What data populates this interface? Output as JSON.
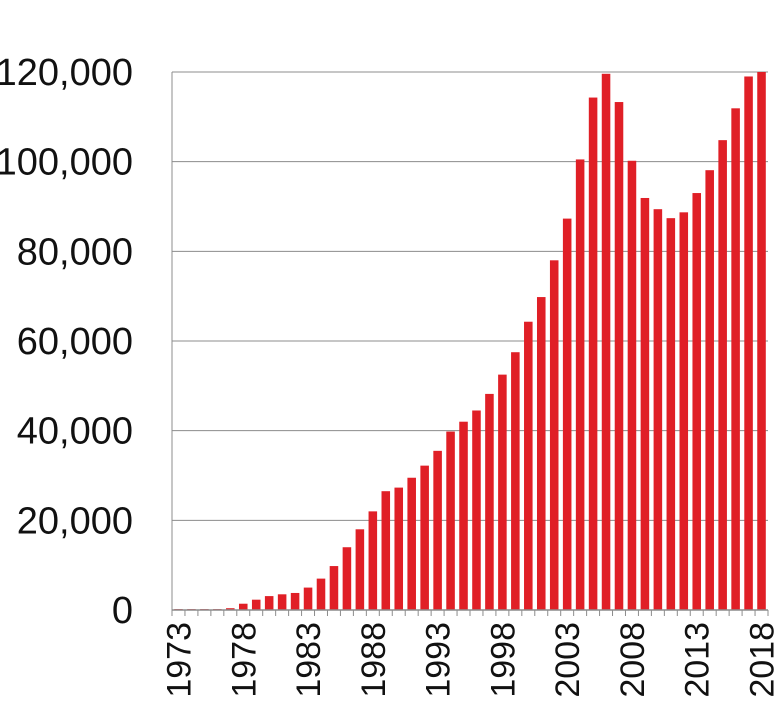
{
  "chart_data": {
    "type": "bar",
    "title": "",
    "xlabel": "",
    "ylabel": "",
    "ylim": [
      0,
      120000
    ],
    "grid": true,
    "colors": {
      "bar": "#e01f26",
      "grid": "#8c8c8c",
      "axis": "#8c8c8c"
    },
    "y_ticks": [
      0,
      20000,
      40000,
      60000,
      80000,
      100000,
      120000
    ],
    "y_tick_labels": [
      "0",
      "20,000",
      "40,000",
      "60,000",
      "80,000",
      "100,000",
      "120,000"
    ],
    "x_tick_labels": [
      "1973",
      "1978",
      "1983",
      "1988",
      "1993",
      "1998",
      "2003",
      "2008",
      "2013",
      "2018"
    ],
    "categories": [
      1973,
      1974,
      1975,
      1976,
      1977,
      1978,
      1979,
      1980,
      1981,
      1982,
      1983,
      1984,
      1985,
      1986,
      1987,
      1988,
      1989,
      1990,
      1991,
      1992,
      1993,
      1994,
      1995,
      1996,
      1997,
      1998,
      1999,
      2000,
      2001,
      2002,
      2003,
      2004,
      2005,
      2006,
      2007,
      2008,
      2009,
      2010,
      2011,
      2012,
      2013,
      2014,
      2015,
      2016,
      2017,
      2018
    ],
    "values": [
      200,
      200,
      200,
      200,
      400,
      1400,
      2300,
      3100,
      3500,
      3800,
      5000,
      7000,
      9800,
      14000,
      18000,
      22000,
      26500,
      27300,
      29500,
      32200,
      35500,
      39800,
      42000,
      44500,
      48200,
      52500,
      57500,
      64300,
      69800,
      78000,
      87300,
      100500,
      114300,
      119600,
      113300,
      100200,
      91900,
      89400,
      87400,
      88700,
      93000,
      98100,
      104800,
      111900,
      119000,
      120000
    ]
  }
}
